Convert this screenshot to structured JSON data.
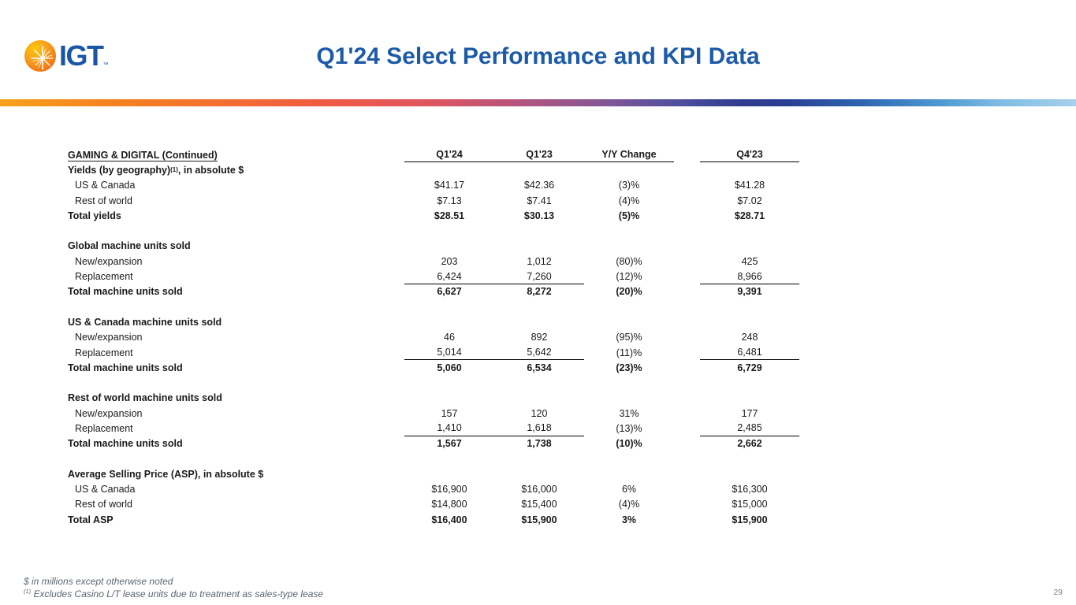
{
  "logo": {
    "text": "IGT",
    "tm": "™"
  },
  "title": "Q1'24 Select Performance and KPI Data",
  "table": {
    "row_header": "GAMING & DIGITAL  (Continued)",
    "columns": [
      "Q1'24",
      "Q1'23",
      "Y/Y Change",
      "Q4'23"
    ],
    "sections": [
      {
        "title_pre": "Yields (by geography)",
        "title_sup": "(1)",
        "title_post": ", in absolute $",
        "rows": [
          {
            "label": "US & Canada",
            "values": [
              "$41.17",
              "$42.36",
              "(3)%",
              "$41.28"
            ],
            "rule": false
          },
          {
            "label": "Rest of world",
            "values": [
              "$7.13",
              "$7.41",
              "(4)%",
              "$7.02"
            ],
            "rule": false
          }
        ],
        "total": {
          "label": "Total yields",
          "values": [
            "$28.51",
            "$30.13",
            "(5)%",
            "$28.71"
          ]
        }
      },
      {
        "title_pre": "Global machine units sold",
        "title_sup": "",
        "title_post": "",
        "rows": [
          {
            "label": "New/expansion",
            "values": [
              "203",
              "1,012",
              "(80)%",
              "425"
            ],
            "rule": false
          },
          {
            "label": "Replacement",
            "values": [
              "6,424",
              "7,260",
              "(12)%",
              "8,966"
            ],
            "rule": true
          }
        ],
        "total": {
          "label": "Total machine units sold",
          "values": [
            "6,627",
            "8,272",
            "(20)%",
            "9,391"
          ]
        }
      },
      {
        "title_pre": "US & Canada machine units sold",
        "title_sup": "",
        "title_post": "",
        "rows": [
          {
            "label": "New/expansion",
            "values": [
              "46",
              "892",
              "(95)%",
              "248"
            ],
            "rule": false
          },
          {
            "label": "Replacement",
            "values": [
              "5,014",
              "5,642",
              "(11)%",
              "6,481"
            ],
            "rule": true
          }
        ],
        "total": {
          "label": "Total machine units sold",
          "values": [
            "5,060",
            "6,534",
            "(23)%",
            "6,729"
          ]
        }
      },
      {
        "title_pre": "Rest of world machine units sold",
        "title_sup": "",
        "title_post": "",
        "rows": [
          {
            "label": "New/expansion",
            "values": [
              "157",
              "120",
              "31%",
              "177"
            ],
            "rule": false
          },
          {
            "label": "Replacement",
            "values": [
              "1,410",
              "1,618",
              "(13)%",
              "2,485"
            ],
            "rule": true
          }
        ],
        "total": {
          "label": "Total machine units sold",
          "values": [
            "1,567",
            "1,738",
            "(10)%",
            "2,662"
          ]
        }
      },
      {
        "title_pre": "Average Selling Price (ASP), in absolute $",
        "title_sup": "",
        "title_post": "",
        "rows": [
          {
            "label": "US & Canada",
            "values": [
              "$16,900",
              "$16,000",
              "6%",
              "$16,300"
            ],
            "rule": false
          },
          {
            "label": "Rest of world",
            "values": [
              "$14,800",
              "$15,400",
              "(4)%",
              "$15,000"
            ],
            "rule": false
          }
        ],
        "total": {
          "label": "Total ASP",
          "values": [
            "$16,400",
            "$15,900",
            "3%",
            "$15,900"
          ]
        }
      }
    ]
  },
  "footnotes": [
    {
      "sup": "",
      "text": "$ in millions except otherwise noted"
    },
    {
      "sup": "(1)",
      "text": " Excludes Casino L/T lease units due to treatment as sales-type lease"
    }
  ],
  "page_number": "29",
  "colors": {
    "title_blue": "#1D5BA8",
    "logo_orange": "#F58220",
    "footnote_gray": "#5B6572"
  }
}
